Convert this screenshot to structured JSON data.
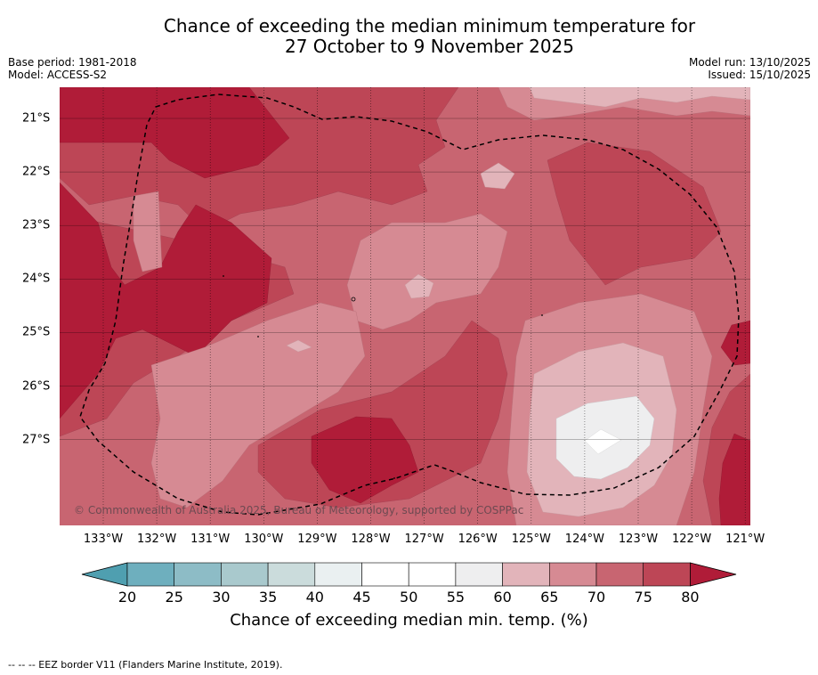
{
  "title": {
    "line1": "Chance of exceeding the median minimum temperature for",
    "line2": "27 October to 9 November 2025"
  },
  "meta": {
    "base_period": "Base period: 1981-2018",
    "model": "Model: ACCESS-S2",
    "model_run": "Model run: 13/10/2025",
    "issued": "Issued: 15/10/2025"
  },
  "axes": {
    "x_ticks": [
      "133°W",
      "132°W",
      "131°W",
      "130°W",
      "129°W",
      "128°W",
      "127°W",
      "126°W",
      "125°W",
      "124°W",
      "123°W",
      "122°W",
      "121°W"
    ],
    "y_ticks": [
      "21°S",
      "22°S",
      "23°S",
      "24°S",
      "25°S",
      "26°S",
      "27°S"
    ]
  },
  "colorbar": {
    "labels": [
      "20",
      "25",
      "30",
      "35",
      "40",
      "45",
      "50",
      "55",
      "60",
      "65",
      "70",
      "75",
      "80"
    ],
    "colors": [
      "#4f9fb0",
      "#6eafbe",
      "#8dbcc6",
      "#a9c9cd",
      "#cbdcdc",
      "#eaf0f1",
      "#ffffff",
      "#ffffff",
      "#eeeeef",
      "#e2b4ba",
      "#d68a93",
      "#c86571",
      "#bd4656",
      "#b01c38"
    ],
    "title": "Chance of exceeding median min. temp. (%)"
  },
  "copyright": "© Commonwealth of Australia 2025, Bureau of Meteorology, supported by COSPPac",
  "legend_note": "--  --  -- EEZ border V11 (Flanders Marine Institute, 2019)."
}
